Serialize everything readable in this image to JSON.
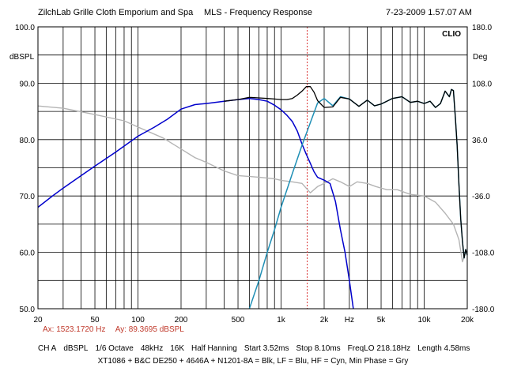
{
  "header": {
    "left": "ZilchLab Grille Cloth Emporium and Spa",
    "center": "MLS - Frequency Response",
    "right": "7-23-2009 1.57.07 AM"
  },
  "brand": "CLIO",
  "units": {
    "left": "dBSPL",
    "right": "Deg"
  },
  "cursor": {
    "ax": "Ax: 1523.1720 Hz",
    "ay": "Ay: 89.3695 dBSPL"
  },
  "settings": [
    "CH A",
    "dBSPL",
    "1/6 Octave",
    "48kHz",
    "16K",
    "Half Hanning",
    "Start 3.52ms",
    "Stop 8.10ms",
    "FreqLO 218.18Hz",
    "Length 4.58ms"
  ],
  "legend_text": "XT1086 + B&C DE250 + 4646A + N1201-8A = Blk, LF = Blu, HF = Cyn, Min Phase = Gry",
  "colors": {
    "blk": "#000000",
    "lf": "#0000cc",
    "hf": "#1f8fb5",
    "phase": "#b4b4b4",
    "cursor": "#d93030",
    "grid": "#000000"
  },
  "chart_data": {
    "type": "line",
    "xscale": "log",
    "xlim": [
      20,
      20000
    ],
    "ylim": [
      50,
      100
    ],
    "y2lim": [
      -180,
      180
    ],
    "xticks": [
      20,
      50,
      100,
      200,
      500,
      1000,
      2000,
      5000,
      10000,
      20000
    ],
    "xtick_labels": [
      "20",
      "50",
      "100",
      "200",
      "500",
      "1k",
      "2k",
      "Hz",
      "5k",
      "10k",
      "20k"
    ],
    "xtick_label_freqs": [
      20,
      50,
      100,
      200,
      500,
      1000,
      2000,
      3000,
      5000,
      10000,
      20000
    ],
    "yticks": [
      50,
      60,
      70,
      80,
      90,
      100
    ],
    "ytick_labels": [
      "50.0",
      "60.0",
      "70.0",
      "80.0",
      "90.0",
      "100.0"
    ],
    "y2ticks": [
      -180,
      -108,
      -36,
      36,
      108,
      180
    ],
    "y2tick_labels": [
      "-180.0",
      "-108.0",
      "-36.0",
      "36.0",
      "108.0",
      "180.0"
    ],
    "cursor_x": 1523.172,
    "series": [
      {
        "key": "phase",
        "axis": "right",
        "x": [
          20,
          30,
          50,
          80,
          100,
          150,
          200,
          250,
          300,
          400,
          500,
          700,
          900,
          1000,
          1200,
          1400,
          1600,
          1800,
          2000,
          2300,
          2600,
          3000,
          3400,
          4000,
          4600,
          5500,
          6500,
          8000,
          10000,
          12000,
          14000,
          16000,
          17500,
          18500,
          19500,
          20000
        ],
        "y": [
          79,
          76,
          68,
          60,
          52,
          38,
          24,
          13,
          7,
          -4,
          -10,
          -12,
          -14,
          -16,
          -18,
          -20,
          -32,
          -24,
          -20,
          -14,
          -18,
          -24,
          -18,
          -20,
          -24,
          -28,
          -28,
          -34,
          -36,
          -44,
          -58,
          -72,
          -92,
          -120,
          -108,
          -110
        ]
      },
      {
        "key": "lf",
        "axis": "left",
        "x": [
          20,
          25,
          30,
          40,
          50,
          70,
          100,
          130,
          160,
          200,
          250,
          300,
          400,
          500,
          600,
          700,
          800,
          900,
          1000,
          1100,
          1200,
          1300,
          1400,
          1500,
          1600,
          1700,
          1800,
          2000,
          2200,
          2400,
          2600,
          2800,
          3000,
          3200
        ],
        "y": [
          68,
          69.9,
          71.4,
          73.6,
          75.3,
          77.8,
          80.6,
          82.2,
          83.6,
          85.4,
          86.2,
          86.4,
          86.8,
          87.1,
          87.3,
          87.1,
          86.8,
          86.1,
          85.3,
          84.3,
          83.2,
          81.5,
          79.2,
          77.4,
          75.8,
          74.3,
          73.3,
          72.8,
          72.2,
          69.0,
          64.0,
          60.0,
          55.0,
          50.0
        ]
      },
      {
        "key": "hf",
        "axis": "left",
        "x": [
          600,
          700,
          800,
          900,
          1000,
          1200,
          1400,
          1600,
          1800,
          2000,
          2300,
          2600,
          3000,
          3500,
          4000,
          4500,
          5000,
          6000,
          7000,
          8000,
          9000,
          10000,
          11000,
          12000,
          13000,
          14000,
          15000,
          15500,
          16000,
          16500,
          17000,
          17500,
          18000,
          18500,
          19000,
          19500,
          20000
        ],
        "y": [
          50.0,
          55.0,
          60.0,
          64.0,
          68.0,
          74.0,
          79.0,
          83.0,
          86.5,
          87.3,
          86.0,
          87.6,
          87.2,
          85.9,
          87.0,
          86.0,
          86.3,
          87.3,
          87.6,
          86.6,
          86.8,
          86.4,
          86.8,
          85.7,
          86.4,
          88.6,
          87.6,
          88.9,
          88.7,
          84.0,
          79.0,
          72.0,
          66.0,
          62.0,
          59.0,
          60.5,
          59.5
        ]
      },
      {
        "key": "blk",
        "axis": "left",
        "x": [
          400,
          500,
          600,
          700,
          800,
          900,
          1000,
          1100,
          1200,
          1300,
          1400,
          1500,
          1600,
          1700,
          1800,
          2000,
          2300,
          2600,
          3000,
          3500,
          4000,
          4500,
          5000,
          6000,
          7000,
          8000,
          9000,
          10000,
          11000,
          12000,
          13000,
          14000,
          15000,
          15500,
          16000,
          16500,
          17000,
          17500,
          18000,
          18500,
          19000,
          19500,
          20000
        ],
        "y": [
          86.8,
          87.1,
          87.5,
          87.4,
          87.3,
          87.2,
          87.1,
          87.1,
          87.3,
          87.9,
          88.6,
          89.4,
          89.4,
          88.4,
          86.9,
          85.7,
          85.8,
          87.5,
          87.2,
          85.9,
          87.0,
          86.0,
          86.3,
          87.3,
          87.6,
          86.6,
          86.8,
          86.4,
          86.8,
          85.7,
          86.4,
          88.6,
          87.6,
          88.9,
          88.7,
          84.0,
          79.0,
          72.0,
          66.0,
          62.0,
          59.0,
          60.5,
          59.5
        ]
      }
    ]
  }
}
